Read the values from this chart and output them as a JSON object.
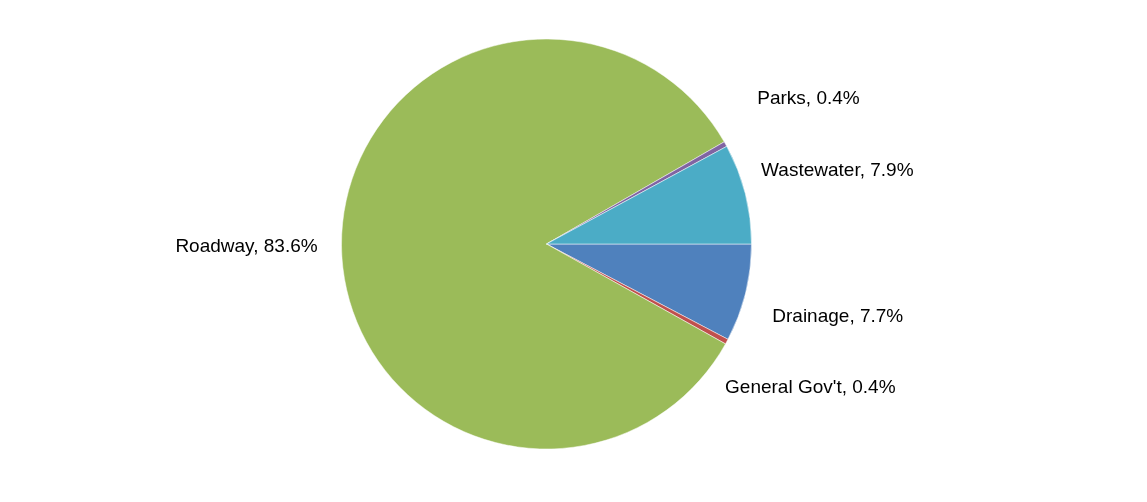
{
  "chart_data": {
    "type": "pie",
    "categories": [
      "Drainage",
      "General Gov't",
      "Roadway",
      "Parks",
      "Wastewater"
    ],
    "values": [
      7.7,
      0.4,
      83.6,
      0.4,
      7.9
    ],
    "colors": [
      "#4f81bd",
      "#c0504d",
      "#9bbb59",
      "#8064a2",
      "#4bacc6"
    ],
    "value_labels": [
      "7.7%",
      "0.4%",
      "83.6%",
      "0.4%",
      "7.9%"
    ],
    "legend": false
  }
}
